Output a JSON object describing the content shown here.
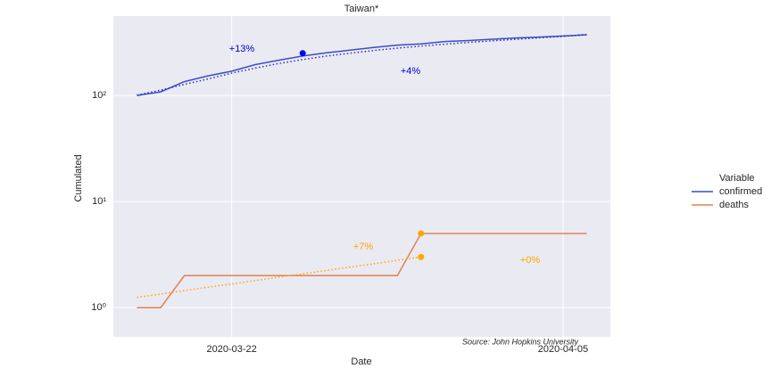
{
  "chart_data": {
    "type": "line",
    "title": "Taiwan*",
    "xlabel": "Date",
    "ylabel": "Cumulated",
    "log_y": true,
    "grid": true,
    "legend": "right",
    "legend_title": "Variable",
    "x": [
      "2020-03-18",
      "2020-03-19",
      "2020-03-20",
      "2020-03-21",
      "2020-03-22",
      "2020-03-23",
      "2020-03-24",
      "2020-03-25",
      "2020-03-26",
      "2020-03-27",
      "2020-03-28",
      "2020-03-29",
      "2020-03-30",
      "2020-03-31",
      "2020-04-01",
      "2020-04-02",
      "2020-04-03",
      "2020-04-04",
      "2020-04-05",
      "2020-04-06"
    ],
    "xlim": [
      "2020-03-17",
      "2020-04-07"
    ],
    "xticks": [
      "2020-03-22",
      "2020-04-05"
    ],
    "ylim": [
      0.53,
      560
    ],
    "yticks": [
      {
        "value": 1,
        "label": "10⁰"
      },
      {
        "value": 10,
        "label": "10¹"
      },
      {
        "value": 100,
        "label": "10²"
      }
    ],
    "series": [
      {
        "name": "confirmed",
        "color": "#3a4fc4",
        "values": [
          100,
          108,
          135,
          153,
          169,
          195,
          215,
          235,
          252,
          267,
          283,
          298,
          306,
          322,
          329,
          339,
          348,
          355,
          363,
          373
        ]
      },
      {
        "name": "deaths",
        "color": "#dd8452",
        "values": [
          1,
          1,
          2,
          2,
          2,
          2,
          2,
          2,
          2,
          2,
          2,
          2,
          5,
          5,
          5,
          5,
          5,
          5,
          5,
          5
        ]
      },
      {
        "color": "#2a2ad0",
        "dotted": true,
        "values": [
          101,
          112,
          127,
          143,
          162,
          181,
          200,
          218,
          235,
          250,
          265,
          279,
          292,
          304,
          316,
          327,
          338,
          349,
          360,
          375
        ]
      },
      {
        "color": "#ffa500",
        "dotted": true,
        "values": [
          1.25,
          1.34,
          1.45,
          1.56,
          1.67,
          1.8,
          1.94,
          2.08,
          2.24,
          2.41,
          2.59,
          2.79,
          3.0,
          null,
          null,
          null,
          null,
          null,
          null,
          null
        ]
      }
    ],
    "markers": [
      {
        "x": "2020-03-25",
        "value": 250,
        "color": "#0000ff"
      },
      {
        "x": "2020-03-30",
        "value": 5,
        "color": "#ffa500"
      },
      {
        "x": "2020-03-30",
        "value": 3,
        "color": "#ffa500"
      }
    ],
    "annotations": [
      {
        "text": "+13%",
        "color": "#0000cd"
      },
      {
        "text": "+4%",
        "color": "#0000cd"
      },
      {
        "text": "+7%",
        "color": "#ffa500"
      },
      {
        "text": "+0%",
        "color": "#ffa500"
      }
    ],
    "source": "Source: John Hopkins University"
  }
}
